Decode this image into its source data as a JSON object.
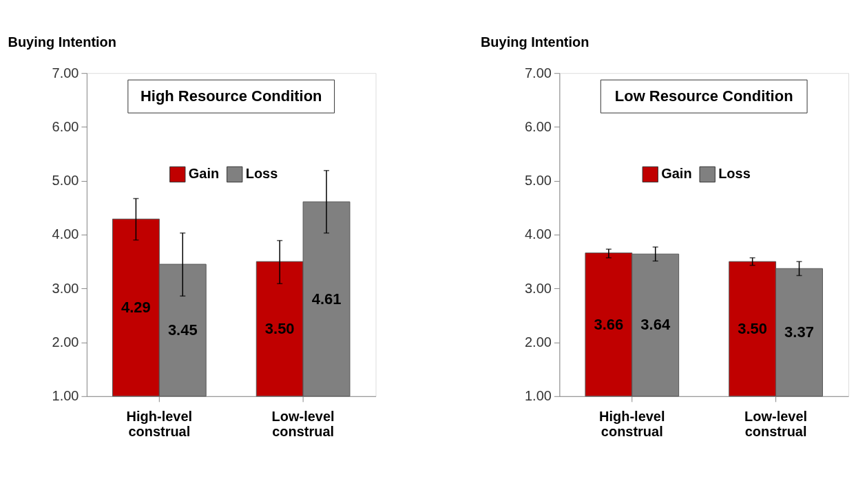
{
  "chart_data": [
    {
      "type": "bar",
      "title": "High Resource Condition",
      "ylabel": "Buying Intention",
      "categories": [
        "High-level construal",
        "Low-level construal"
      ],
      "series": [
        {
          "name": "Gain",
          "color": "#c00000",
          "values": [
            4.29,
            3.5
          ],
          "value_labels": [
            "4.29",
            "3.50"
          ],
          "errors": [
            [
              3.9,
              4.67
            ],
            [
              3.09,
              3.89
            ]
          ]
        },
        {
          "name": "Loss",
          "color": "#808080",
          "values": [
            3.45,
            4.61
          ],
          "value_labels": [
            "3.45",
            "4.61"
          ],
          "errors": [
            [
              2.86,
              4.03
            ],
            [
              4.03,
              5.19
            ]
          ]
        }
      ],
      "ylim": [
        1,
        7
      ],
      "yticks": [
        {
          "value": 1,
          "label": "1.00"
        },
        {
          "value": 2,
          "label": "2.00"
        },
        {
          "value": 3,
          "label": "3.00"
        },
        {
          "value": 4,
          "label": "4.00"
        },
        {
          "value": 5,
          "label": "5.00"
        },
        {
          "value": 6,
          "label": "6.00"
        },
        {
          "value": 7,
          "label": "7.00"
        }
      ],
      "grid": false,
      "legend": "top"
    },
    {
      "type": "bar",
      "title": "Low Resource Condition",
      "ylabel": "Buying Intention",
      "categories": [
        "High-level construal",
        "Low-level construal"
      ],
      "series": [
        {
          "name": "Gain",
          "color": "#c00000",
          "values": [
            3.66,
            3.5
          ],
          "value_labels": [
            "3.66",
            "3.50"
          ],
          "errors": [
            [
              3.57,
              3.73
            ],
            [
              3.43,
              3.57
            ]
          ]
        },
        {
          "name": "Loss",
          "color": "#808080",
          "values": [
            3.64,
            3.37
          ],
          "value_labels": [
            "3.64",
            "3.37"
          ],
          "errors": [
            [
              3.51,
              3.77
            ],
            [
              3.24,
              3.5
            ]
          ]
        }
      ],
      "ylim": [
        1,
        7
      ],
      "yticks": [
        {
          "value": 1,
          "label": "1.00"
        },
        {
          "value": 2,
          "label": "2.00"
        },
        {
          "value": 3,
          "label": "3.00"
        },
        {
          "value": 4,
          "label": "4.00"
        },
        {
          "value": 5,
          "label": "5.00"
        },
        {
          "value": 6,
          "label": "6.00"
        },
        {
          "value": 7,
          "label": "7.00"
        }
      ],
      "grid": false,
      "legend": "top"
    }
  ]
}
